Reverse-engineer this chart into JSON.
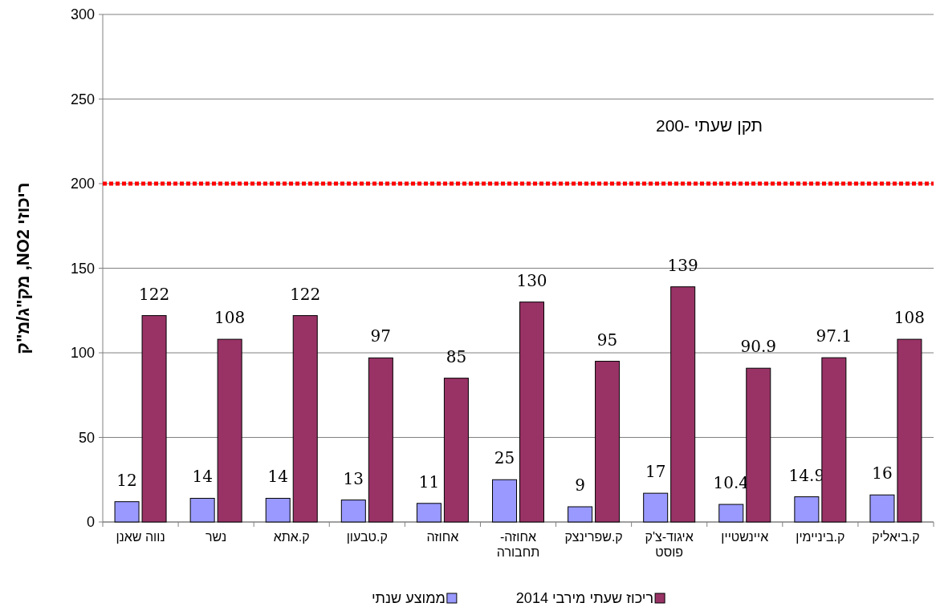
{
  "chart_data": {
    "type": "bar",
    "ylabel": "ריכוזי NO2, מק\"ג/מ\"ק",
    "categories": [
      "נווה שאנן",
      "נשר",
      "ק.אתא",
      "ק.טבעון",
      "אחוזה",
      "אחוזה-תחבורה",
      "ק.שפרינצק",
      "איגוד-צ'ק פוסט",
      "איינשטיין",
      "ק.ביניימין",
      "ק.ביאליק"
    ],
    "series": [
      {
        "name": "ממוצע שנתי",
        "color": "#9999ff",
        "values": [
          12,
          14,
          14,
          13,
          11,
          25,
          9,
          17,
          10.4,
          14.9,
          16
        ]
      },
      {
        "name": "ריכוז שעתי מירבי 2014",
        "color": "#993366",
        "values": [
          122,
          108,
          122,
          97,
          85,
          130,
          95,
          139,
          90.9,
          97.1,
          108
        ]
      }
    ],
    "ylim": [
      0,
      300
    ],
    "yticks": [
      0,
      50,
      100,
      150,
      200,
      250,
      300
    ],
    "ref_lines": [
      {
        "axis": "y",
        "value": 200,
        "label": "תקן שעתי -200",
        "color": "#ff0000",
        "line_style": "dotted"
      }
    ],
    "data_labels": true,
    "grid": "y",
    "legend": "bottom"
  }
}
